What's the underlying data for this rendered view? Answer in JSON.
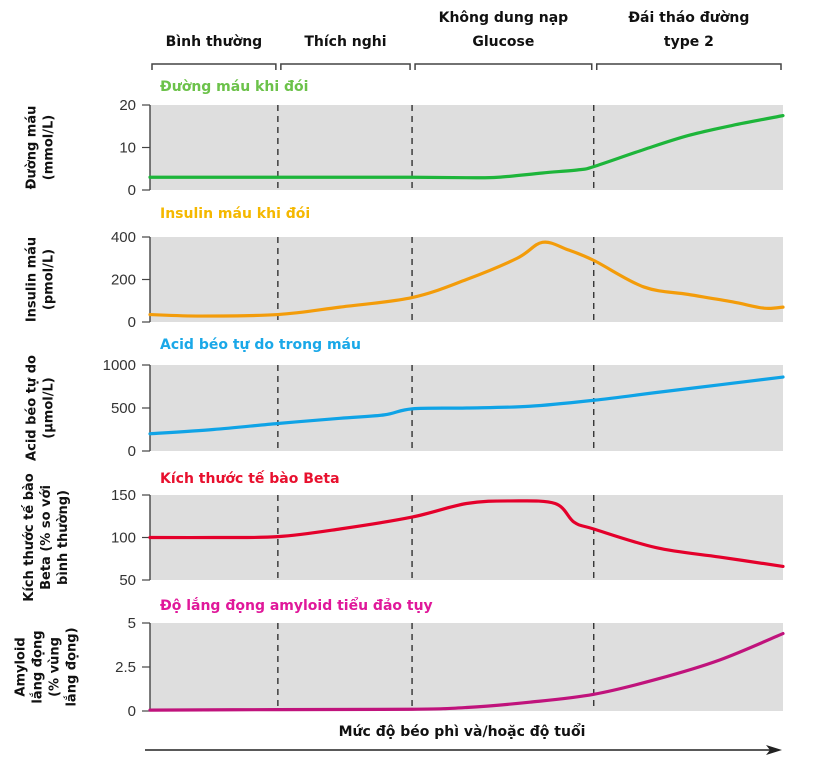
{
  "chart_data": {
    "type": "line",
    "phases": [
      "Bình thường",
      "Thích nghi",
      "Không dung nạp\nGlucose",
      "Đái tháo đường\ntype 2"
    ],
    "phase_boundaries": [
      0.0,
      0.202,
      0.414,
      0.701,
      1.0
    ],
    "xlabel": "Mức độ béo phì và/hoặc độ tuổi",
    "x_range": [
      0,
      1
    ],
    "panels": [
      {
        "title": "Đường máu khi đói",
        "ylabel": [
          "Đường máu",
          "(mmol/L)"
        ],
        "color": "#1db53a",
        "title_color": "#6cc24a",
        "ylim": [
          0,
          20
        ],
        "yticks": [
          "20",
          "10",
          "0"
        ],
        "ytick_values": [
          20,
          10,
          0
        ],
        "x": [
          0,
          0.1,
          0.2,
          0.3,
          0.414,
          0.5,
          0.55,
          0.62,
          0.68,
          0.701,
          0.78,
          0.85,
          0.92,
          1.0
        ],
        "y": [
          3,
          3,
          3,
          3,
          3,
          2.9,
          3,
          4,
          4.8,
          5.5,
          9.5,
          12.8,
          15.2,
          17.5
        ]
      },
      {
        "title": "Insulin máu khi đói",
        "ylabel": [
          "Insulin máu",
          "(pmol/L)"
        ],
        "color": "#f39c0a",
        "title_color": "#f5b800",
        "ylim": [
          0,
          400
        ],
        "yticks": [
          "400",
          "200",
          "0"
        ],
        "ytick_values": [
          400,
          200,
          0
        ],
        "x": [
          0,
          0.08,
          0.202,
          0.3,
          0.414,
          0.5,
          0.58,
          0.62,
          0.66,
          0.701,
          0.78,
          0.85,
          0.92,
          0.97,
          1.0
        ],
        "y": [
          35,
          28,
          35,
          70,
          115,
          200,
          300,
          375,
          340,
          290,
          165,
          130,
          95,
          65,
          70
        ]
      },
      {
        "title": "Acid béo tự do trong máu",
        "ylabel": [
          "Acid béo tự do",
          "(µmol/L)"
        ],
        "color": "#0fa3e6",
        "title_color": "#1aa8e8",
        "ylim": [
          0,
          1000
        ],
        "yticks": [
          "1000",
          "500",
          "0"
        ],
        "ytick_values": [
          1000,
          500,
          0
        ],
        "x": [
          0,
          0.1,
          0.202,
          0.3,
          0.37,
          0.414,
          0.5,
          0.6,
          0.701,
          0.8,
          0.9,
          1.0
        ],
        "y": [
          200,
          250,
          320,
          380,
          420,
          490,
          500,
          520,
          590,
          680,
          770,
          860
        ]
      },
      {
        "title": "Kích thước tế bào Beta",
        "ylabel": [
          "Kích thước tế bào",
          "Beta (% so với",
          "bình thường)"
        ],
        "color": "#e4002b",
        "title_color": "#e8102e",
        "ylim": [
          50,
          150
        ],
        "yticks": [
          "150",
          "100",
          "50"
        ],
        "ytick_values": [
          150,
          100,
          50
        ],
        "x": [
          0,
          0.1,
          0.202,
          0.3,
          0.414,
          0.5,
          0.57,
          0.64,
          0.67,
          0.701,
          0.8,
          0.9,
          1.0
        ],
        "y": [
          100,
          100,
          101,
          110,
          124,
          140,
          143,
          140,
          118,
          110,
          88,
          77,
          66
        ]
      },
      {
        "title": "Độ lắng đọng amyloid tiểu đảo tụy",
        "ylabel": [
          "Amyloid",
          "lắng đọng",
          "(% vùng",
          "lắng đọng)"
        ],
        "color": "#c0137c",
        "title_color": "#e0189a",
        "ylim": [
          0,
          5
        ],
        "yticks": [
          "5",
          "2.5",
          "0"
        ],
        "ytick_values": [
          5,
          2.5,
          0
        ],
        "x": [
          0,
          0.202,
          0.414,
          0.5,
          0.6,
          0.701,
          0.8,
          0.9,
          1.0
        ],
        "y": [
          0.05,
          0.08,
          0.1,
          0.2,
          0.5,
          0.95,
          1.8,
          2.9,
          4.4
        ]
      }
    ]
  }
}
